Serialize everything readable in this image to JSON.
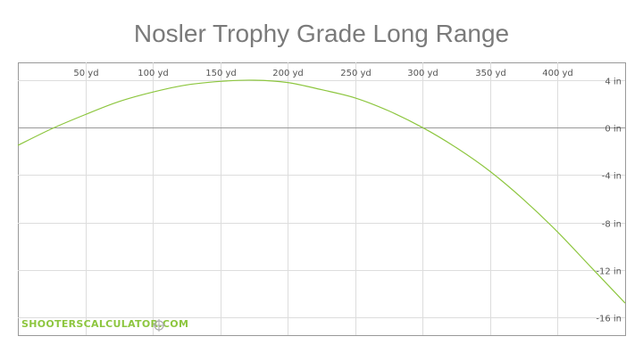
{
  "title": "Nosler Trophy Grade Long Range",
  "watermark": "SHOOTERSCALCULATOR.COM",
  "icons": {
    "watermark_logo": "crosshair-icon"
  },
  "colors": {
    "trajectory": "#8dc63f",
    "grid": "#dddddd",
    "zero_line": "#999999",
    "title": "#7a7a7a"
  },
  "chart_data": {
    "type": "line",
    "title": "Nosler Trophy Grade Long Range",
    "xlabel": "",
    "ylabel": "",
    "x_unit": "yd",
    "y_unit": "in",
    "xlim": [
      0,
      450
    ],
    "ylim": [
      -17.5,
      5.5
    ],
    "x_ticks": [
      50,
      100,
      150,
      200,
      250,
      300,
      350,
      400
    ],
    "x_tick_labels": [
      "50 yd",
      "100 yd",
      "150 yd",
      "200 yd",
      "250 yd",
      "300 yd",
      "350 yd",
      "400 yd"
    ],
    "y_ticks": [
      4,
      0,
      -4,
      -8,
      -12,
      -16
    ],
    "y_tick_labels": [
      "4 in",
      "0 in",
      "-4 in",
      "-8 in",
      "-12 in",
      "-16 in"
    ],
    "grid": true,
    "series": [
      {
        "x": [
          0,
          25,
          50,
          75,
          100,
          125,
          150,
          175,
          200,
          225,
          250,
          275,
          300,
          325,
          350,
          375,
          400,
          425,
          450
        ],
        "y": [
          -1.5,
          -0.1,
          1.1,
          2.2,
          3.0,
          3.6,
          3.9,
          4.0,
          3.8,
          3.2,
          2.5,
          1.4,
          0.0,
          -1.7,
          -3.7,
          -6.1,
          -8.8,
          -11.8,
          -14.8
        ]
      }
    ]
  }
}
